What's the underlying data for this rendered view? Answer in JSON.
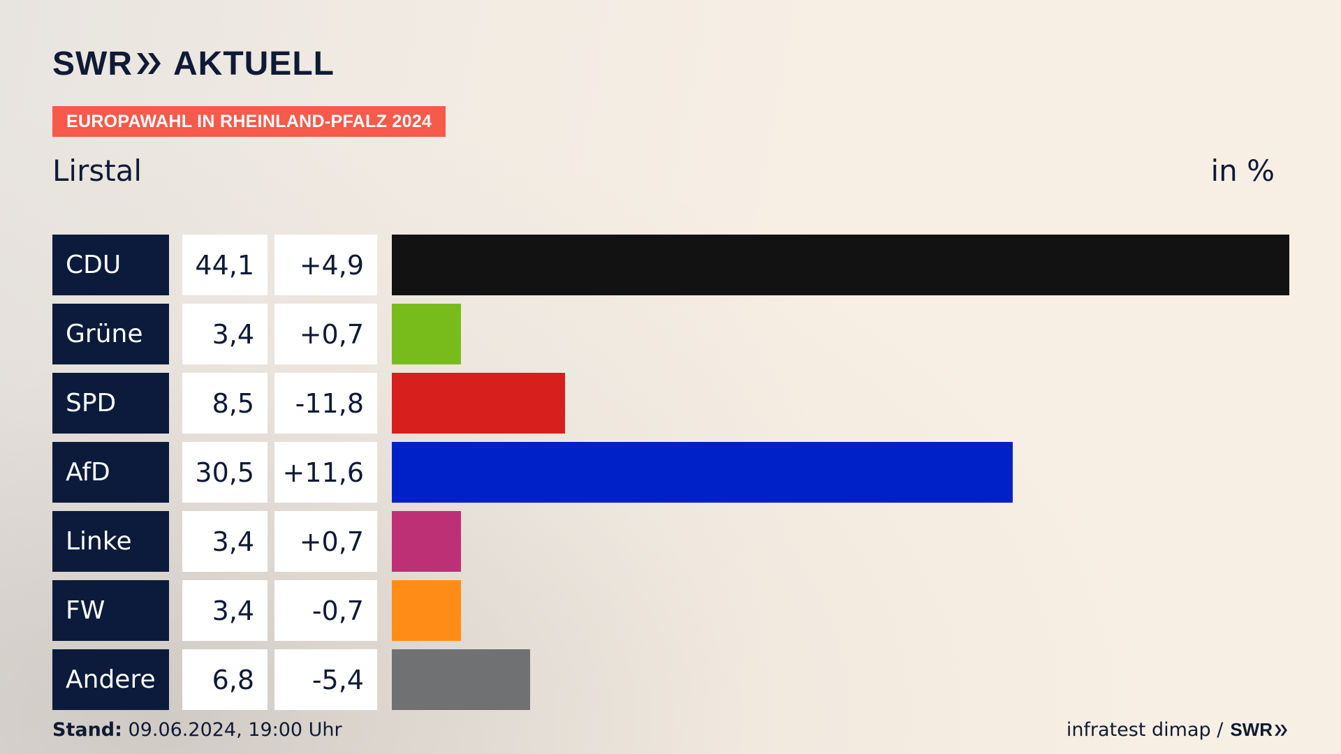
{
  "brand": {
    "logo_left": "SWR",
    "logo_right": "AKTUELL"
  },
  "tag": "EUROPAWAHL IN RHEINLAND-PFALZ 2024",
  "region": "Lirstal",
  "unit": "in %",
  "chart_data": {
    "type": "bar",
    "orientation": "horizontal",
    "title": "EUROPAWAHL IN RHEINLAND-PFALZ 2024",
    "subtitle": "Lirstal",
    "unit_label": "in %",
    "xlim": [
      0,
      44.1
    ],
    "rows": [
      {
        "party": "CDU",
        "value_label": "44,1",
        "diff_label": "+4,9",
        "value": 44.1,
        "diff": 4.9,
        "color": "#121212"
      },
      {
        "party": "Grüne",
        "value_label": "3,4",
        "diff_label": "+0,7",
        "value": 3.4,
        "diff": 0.7,
        "color": "#78bc1b"
      },
      {
        "party": "SPD",
        "value_label": "8,5",
        "diff_label": "-11,8",
        "value": 8.5,
        "diff": -11.8,
        "color": "#d71f1d"
      },
      {
        "party": "AfD",
        "value_label": "30,5",
        "diff_label": "+11,6",
        "value": 30.5,
        "diff": 11.6,
        "color": "#0021c8"
      },
      {
        "party": "Linke",
        "value_label": "3,4",
        "diff_label": "+0,7",
        "value": 3.4,
        "diff": 0.7,
        "color": "#bd3075"
      },
      {
        "party": "FW",
        "value_label": "3,4",
        "diff_label": "-0,7",
        "value": 3.4,
        "diff": -0.7,
        "color": "#ff8c17"
      },
      {
        "party": "Andere",
        "value_label": "6,8",
        "diff_label": "-5,4",
        "value": 6.8,
        "diff": -5.4,
        "color": "#707173"
      }
    ]
  },
  "footer": {
    "stand_label": "Stand:",
    "stand_value": "09.06.2024, 19:00 Uhr",
    "source": "infratest dimap /",
    "source_brand": "SWR"
  },
  "colors": {
    "accent": "#f55a4b",
    "navy": "#0c1b3b"
  }
}
